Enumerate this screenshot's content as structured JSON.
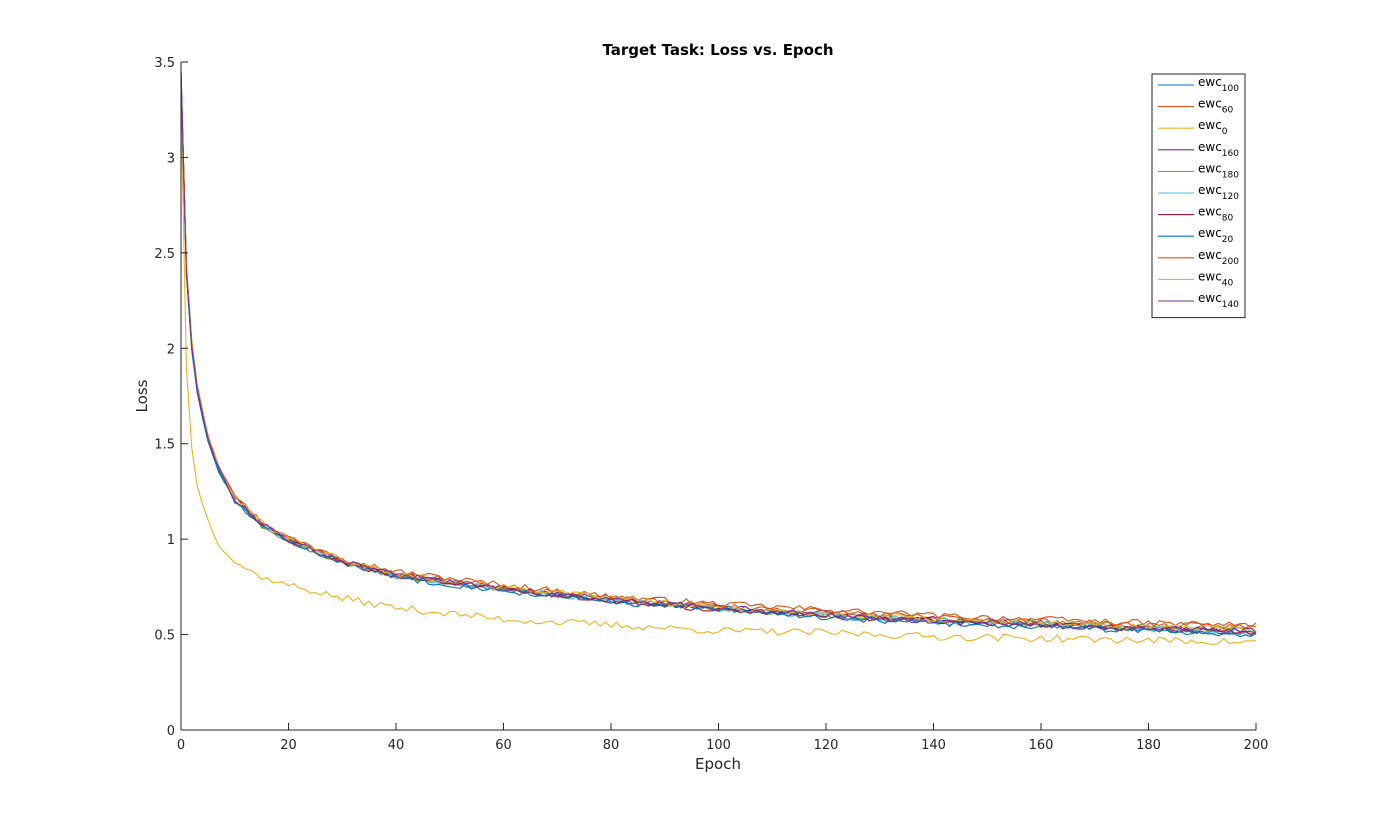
{
  "chart_data": {
    "type": "line",
    "title": "Target Task: Loss vs. Epoch",
    "xlabel": "Epoch",
    "ylabel": "Loss",
    "xlim": [
      0,
      200
    ],
    "ylim": [
      0,
      3.5
    ],
    "xticks": [
      0,
      20,
      40,
      60,
      80,
      100,
      120,
      140,
      160,
      180,
      200
    ],
    "yticks": [
      0,
      0.5,
      1,
      1.5,
      2,
      2.5,
      3,
      3.5
    ],
    "ytick_labels": [
      "0",
      "0.5",
      "1",
      "1.5",
      "2",
      "2.5",
      "3",
      "3.5"
    ],
    "grid": false,
    "legend_position": "top-right",
    "sample_x": [
      0,
      1,
      2,
      3,
      5,
      7,
      10,
      15,
      20,
      30,
      40,
      60,
      80,
      100,
      120,
      140,
      160,
      180,
      200
    ],
    "series": [
      {
        "name_main": "ewc",
        "name_sub": "100",
        "color": "#0072BD",
        "seed": 11,
        "noise": 0.01,
        "values": [
          3.4,
          2.4,
          2.0,
          1.78,
          1.52,
          1.36,
          1.2,
          1.07,
          0.99,
          0.88,
          0.81,
          0.74,
          0.68,
          0.64,
          0.6,
          0.57,
          0.55,
          0.53,
          0.51
        ]
      },
      {
        "name_main": "ewc",
        "name_sub": "60",
        "color": "#D95319",
        "seed": 23,
        "noise": 0.01,
        "values": [
          3.42,
          2.42,
          2.02,
          1.8,
          1.54,
          1.38,
          1.22,
          1.08,
          1.0,
          0.89,
          0.82,
          0.75,
          0.69,
          0.65,
          0.62,
          0.59,
          0.57,
          0.55,
          0.54
        ]
      },
      {
        "name_main": "ewc",
        "name_sub": "0",
        "color": "#EDB120",
        "seed": 37,
        "noise": 0.012,
        "values": [
          3.3,
          1.9,
          1.48,
          1.28,
          1.1,
          0.98,
          0.88,
          0.8,
          0.76,
          0.69,
          0.64,
          0.58,
          0.55,
          0.52,
          0.51,
          0.49,
          0.48,
          0.47,
          0.46
        ]
      },
      {
        "name_main": "ewc",
        "name_sub": "160",
        "color": "#7E2F8E",
        "seed": 41,
        "noise": 0.01,
        "values": [
          3.45,
          2.42,
          2.02,
          1.79,
          1.53,
          1.37,
          1.21,
          1.08,
          1.0,
          0.88,
          0.81,
          0.74,
          0.68,
          0.64,
          0.61,
          0.58,
          0.56,
          0.54,
          0.52
        ]
      },
      {
        "name_main": "ewc",
        "name_sub": "180",
        "color": "#77AC30",
        "seed": 53,
        "noise": 0.01,
        "values": [
          3.41,
          2.41,
          2.01,
          1.79,
          1.53,
          1.37,
          1.21,
          1.07,
          0.99,
          0.88,
          0.81,
          0.74,
          0.68,
          0.64,
          0.6,
          0.58,
          0.56,
          0.54,
          0.52
        ]
      },
      {
        "name_main": "ewc",
        "name_sub": "120",
        "color": "#4DBEEE",
        "seed": 67,
        "noise": 0.011,
        "values": [
          3.4,
          2.4,
          2.0,
          1.78,
          1.52,
          1.36,
          1.21,
          1.08,
          1.0,
          0.89,
          0.81,
          0.74,
          0.68,
          0.63,
          0.6,
          0.57,
          0.55,
          0.53,
          0.51
        ]
      },
      {
        "name_main": "ewc",
        "name_sub": "80",
        "color": "#A2142F",
        "seed": 71,
        "noise": 0.01,
        "values": [
          3.43,
          2.43,
          2.03,
          1.8,
          1.54,
          1.38,
          1.22,
          1.08,
          1.0,
          0.88,
          0.81,
          0.74,
          0.68,
          0.63,
          0.6,
          0.57,
          0.55,
          0.53,
          0.51
        ]
      },
      {
        "name_main": "ewc",
        "name_sub": "20",
        "color": "#0072BD",
        "seed": 83,
        "noise": 0.01,
        "values": [
          3.39,
          2.39,
          1.99,
          1.77,
          1.51,
          1.35,
          1.2,
          1.07,
          0.99,
          0.88,
          0.8,
          0.73,
          0.67,
          0.63,
          0.59,
          0.56,
          0.54,
          0.52,
          0.5
        ]
      },
      {
        "name_main": "ewc",
        "name_sub": "200",
        "color": "#D95319",
        "seed": 97,
        "noise": 0.01,
        "values": [
          3.44,
          2.44,
          2.04,
          1.81,
          1.55,
          1.39,
          1.23,
          1.09,
          1.01,
          0.9,
          0.83,
          0.76,
          0.7,
          0.66,
          0.63,
          0.6,
          0.58,
          0.56,
          0.55
        ]
      },
      {
        "name_main": "ewc",
        "name_sub": "40",
        "color": "#EDB120",
        "seed": 101,
        "noise": 0.01,
        "values": [
          3.42,
          2.43,
          2.03,
          1.8,
          1.54,
          1.38,
          1.22,
          1.09,
          1.01,
          0.89,
          0.82,
          0.75,
          0.69,
          0.64,
          0.61,
          0.58,
          0.56,
          0.54,
          0.53
        ]
      },
      {
        "name_main": "ewc",
        "name_sub": "140",
        "color": "#7E2F8E",
        "seed": 113,
        "noise": 0.01,
        "values": [
          3.46,
          2.41,
          2.01,
          1.79,
          1.53,
          1.37,
          1.21,
          1.08,
          1.0,
          0.88,
          0.81,
          0.74,
          0.68,
          0.64,
          0.6,
          0.57,
          0.55,
          0.53,
          0.52
        ]
      }
    ]
  }
}
